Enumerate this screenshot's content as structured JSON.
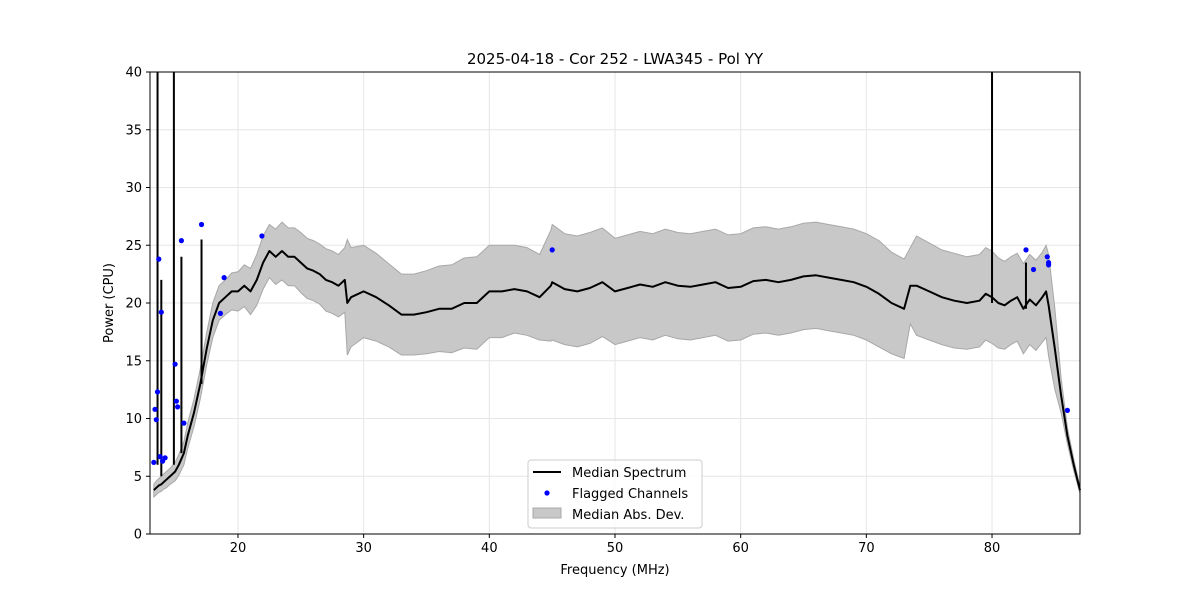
{
  "chart_data": {
    "type": "line",
    "title": "2025-04-18 - Cor 252 - LWA345 - Pol YY",
    "xlabel": "Frequency (MHz)",
    "ylabel": "Power (CPU)",
    "xlim": [
      13.0,
      87.0
    ],
    "ylim": [
      0,
      40
    ],
    "xticks": [
      20,
      30,
      40,
      50,
      60,
      70,
      80
    ],
    "yticks": [
      0,
      5,
      10,
      15,
      20,
      25,
      30,
      35,
      40
    ],
    "grid": true,
    "legend_position": "bottom-center",
    "colors": {
      "median": "#000000",
      "flagged": "#0000ff",
      "mad_fill": "#c8c8c8",
      "mad_edge": "#a8a8a8",
      "grid": "#e6e6e6"
    },
    "series": [
      {
        "name": "Median Spectrum",
        "kind": "line",
        "x": [
          13.3,
          13.5,
          13.7,
          13.9,
          14.1,
          14.3,
          14.6,
          15.0,
          15.3,
          15.7,
          16.0,
          16.5,
          17.0,
          17.5,
          18.0,
          18.5,
          19.0,
          19.5,
          20.0,
          20.5,
          21.0,
          21.5,
          22.0,
          22.5,
          23.0,
          23.5,
          24.0,
          24.5,
          25.0,
          25.5,
          26.0,
          26.5,
          27.0,
          27.5,
          28.0,
          28.5,
          28.7,
          29.0,
          30.0,
          31.0,
          32.0,
          33.0,
          34.0,
          35.0,
          36.0,
          37.0,
          38.0,
          39.0,
          40.0,
          41.0,
          42.0,
          43.0,
          44.0,
          44.9,
          45.0,
          46.0,
          47.0,
          48.0,
          49.0,
          50.0,
          51.0,
          52.0,
          53.0,
          54.0,
          55.0,
          56.0,
          57.0,
          58.0,
          59.0,
          60.0,
          61.0,
          62.0,
          63.0,
          64.0,
          65.0,
          66.0,
          67.0,
          68.0,
          69.0,
          70.0,
          71.0,
          72.0,
          73.0,
          73.5,
          74.0,
          75.0,
          76.0,
          77.0,
          78.0,
          79.0,
          79.5,
          80.0,
          80.5,
          81.0,
          81.5,
          82.0,
          82.5,
          83.0,
          83.5,
          84.0,
          84.3,
          84.5,
          85.0,
          85.5,
          86.0,
          86.5,
          87.0
        ],
        "y": [
          3.8,
          4.0,
          4.2,
          4.3,
          4.5,
          4.7,
          5.0,
          5.4,
          6.0,
          7.0,
          8.5,
          10.5,
          13.0,
          16.0,
          18.5,
          20.0,
          20.5,
          21.0,
          21.0,
          21.5,
          21.0,
          22.0,
          23.5,
          24.5,
          24.0,
          24.5,
          24.0,
          24.0,
          23.5,
          23.0,
          22.8,
          22.5,
          22.0,
          21.8,
          21.5,
          22.0,
          20.0,
          20.5,
          21.0,
          20.5,
          19.8,
          19.0,
          19.0,
          19.2,
          19.5,
          19.5,
          20.0,
          20.0,
          21.0,
          21.0,
          21.2,
          21.0,
          20.5,
          21.5,
          21.8,
          21.2,
          21.0,
          21.3,
          21.8,
          21.0,
          21.3,
          21.6,
          21.4,
          21.8,
          21.5,
          21.4,
          21.6,
          21.8,
          21.3,
          21.4,
          21.9,
          22.0,
          21.8,
          22.0,
          22.3,
          22.4,
          22.2,
          22.0,
          21.8,
          21.4,
          20.8,
          20.0,
          19.5,
          21.5,
          21.5,
          21.0,
          20.5,
          20.2,
          20.0,
          20.2,
          20.8,
          20.5,
          20.0,
          19.8,
          20.2,
          20.5,
          19.5,
          20.3,
          19.8,
          20.5,
          21.0,
          19.8,
          16.0,
          12.0,
          8.5,
          6.0,
          3.8
        ]
      },
      {
        "name": "Flagged Channels",
        "kind": "scatter",
        "x": [
          13.3,
          13.4,
          13.5,
          13.6,
          13.7,
          13.8,
          13.9,
          14.0,
          14.2,
          15.0,
          15.1,
          15.2,
          15.5,
          15.7,
          17.1,
          18.6,
          18.9,
          21.9,
          45.0,
          82.7,
          83.3,
          84.4,
          84.5,
          84.5,
          86.0
        ],
        "y": [
          6.2,
          10.8,
          9.9,
          12.3,
          23.8,
          6.7,
          19.2,
          6.3,
          6.6,
          14.7,
          11.5,
          11.0,
          25.4,
          9.6,
          26.8,
          19.1,
          22.2,
          25.8,
          24.6,
          24.6,
          22.9,
          24.0,
          23.5,
          23.3,
          10.7
        ]
      },
      {
        "name": "Median Abs. Dev.",
        "kind": "band",
        "x": [
          13.3,
          13.5,
          13.7,
          13.9,
          14.1,
          14.3,
          14.6,
          15.0,
          15.3,
          15.7,
          16.0,
          16.5,
          17.0,
          17.5,
          18.0,
          18.5,
          19.0,
          19.5,
          20.0,
          20.5,
          21.0,
          21.5,
          22.0,
          22.5,
          23.0,
          23.5,
          24.0,
          24.5,
          25.0,
          25.5,
          26.0,
          26.5,
          27.0,
          27.5,
          28.0,
          28.5,
          28.7,
          29.0,
          30.0,
          31.0,
          32.0,
          33.0,
          34.0,
          35.0,
          36.0,
          37.0,
          38.0,
          39.0,
          40.0,
          41.0,
          42.0,
          43.0,
          44.0,
          44.9,
          45.0,
          46.0,
          47.0,
          48.0,
          49.0,
          50.0,
          51.0,
          52.0,
          53.0,
          54.0,
          55.0,
          56.0,
          57.0,
          58.0,
          59.0,
          60.0,
          61.0,
          62.0,
          63.0,
          64.0,
          65.0,
          66.0,
          67.0,
          68.0,
          69.0,
          70.0,
          71.0,
          72.0,
          73.0,
          73.5,
          74.0,
          75.0,
          76.0,
          77.0,
          78.0,
          79.0,
          79.5,
          80.0,
          80.5,
          81.0,
          81.5,
          82.0,
          82.5,
          83.0,
          83.5,
          84.0,
          84.3,
          84.5,
          85.0,
          85.5,
          86.0,
          86.5,
          87.0
        ],
        "upper": [
          4.3,
          4.6,
          4.8,
          5.0,
          5.2,
          5.4,
          5.7,
          6.2,
          6.9,
          8.0,
          9.6,
          11.7,
          14.3,
          17.4,
          20.0,
          21.5,
          22.0,
          22.6,
          22.7,
          23.3,
          23.0,
          24.2,
          25.8,
          26.8,
          26.4,
          27.0,
          26.5,
          26.5,
          26.1,
          25.6,
          25.4,
          25.1,
          24.7,
          24.5,
          24.2,
          24.8,
          25.5,
          24.8,
          25.0,
          24.3,
          23.4,
          22.5,
          22.5,
          22.8,
          23.2,
          23.3,
          23.9,
          24.0,
          25.0,
          25.0,
          25.0,
          24.8,
          24.2,
          26.3,
          26.8,
          26.0,
          25.8,
          26.1,
          26.5,
          25.6,
          25.9,
          26.2,
          26.0,
          26.4,
          26.1,
          26.0,
          26.2,
          26.4,
          25.9,
          26.0,
          26.5,
          26.6,
          26.4,
          26.6,
          26.9,
          27.0,
          26.8,
          26.6,
          26.4,
          26.0,
          25.4,
          24.4,
          23.8,
          24.8,
          25.8,
          25.2,
          24.6,
          24.3,
          24.0,
          24.2,
          24.8,
          24.5,
          23.9,
          23.6,
          24.0,
          24.3,
          23.4,
          24.2,
          23.7,
          24.4,
          25.0,
          24.2,
          19.5,
          13.5,
          9.2,
          6.5,
          4.1
        ],
        "lower": [
          3.2,
          3.4,
          3.6,
          3.7,
          3.9,
          4.0,
          4.3,
          4.6,
          5.1,
          6.0,
          7.4,
          9.3,
          11.7,
          14.6,
          17.0,
          18.5,
          19.0,
          19.4,
          19.3,
          19.7,
          19.0,
          19.8,
          21.2,
          22.2,
          21.6,
          22.0,
          21.5,
          21.5,
          20.9,
          20.4,
          20.2,
          19.9,
          19.3,
          19.1,
          18.8,
          19.2,
          15.5,
          16.2,
          17.0,
          16.7,
          16.2,
          15.5,
          15.5,
          15.6,
          15.8,
          15.7,
          16.1,
          16.0,
          17.0,
          17.0,
          17.4,
          17.2,
          16.8,
          16.7,
          16.8,
          16.4,
          16.2,
          16.5,
          17.1,
          16.4,
          16.7,
          17.0,
          16.8,
          17.2,
          16.9,
          16.8,
          17.0,
          17.2,
          16.7,
          16.8,
          17.3,
          17.4,
          17.2,
          17.4,
          17.7,
          17.8,
          17.6,
          17.4,
          17.2,
          16.8,
          16.2,
          15.6,
          15.2,
          18.2,
          17.2,
          16.8,
          16.4,
          16.1,
          16.0,
          16.2,
          16.8,
          16.5,
          16.1,
          16.0,
          16.4,
          16.7,
          15.6,
          16.4,
          15.9,
          16.6,
          17.0,
          15.4,
          12.5,
          10.5,
          7.8,
          5.5,
          3.5
        ]
      }
    ],
    "spikes": [
      {
        "x": 13.6,
        "y": 40,
        "base": 6
      },
      {
        "x": 13.9,
        "y": 22,
        "base": 5
      },
      {
        "x": 14.9,
        "y": 40,
        "base": 6
      },
      {
        "x": 15.5,
        "y": 24,
        "base": 7
      },
      {
        "x": 17.1,
        "y": 25.5,
        "base": 13
      },
      {
        "x": 80.0,
        "y": 40,
        "base": 20
      },
      {
        "x": 82.7,
        "y": 23.5,
        "base": 19.5
      }
    ],
    "legend": {
      "entries": [
        "Median Spectrum",
        "Flagged Channels",
        "Median Abs. Dev."
      ]
    }
  }
}
